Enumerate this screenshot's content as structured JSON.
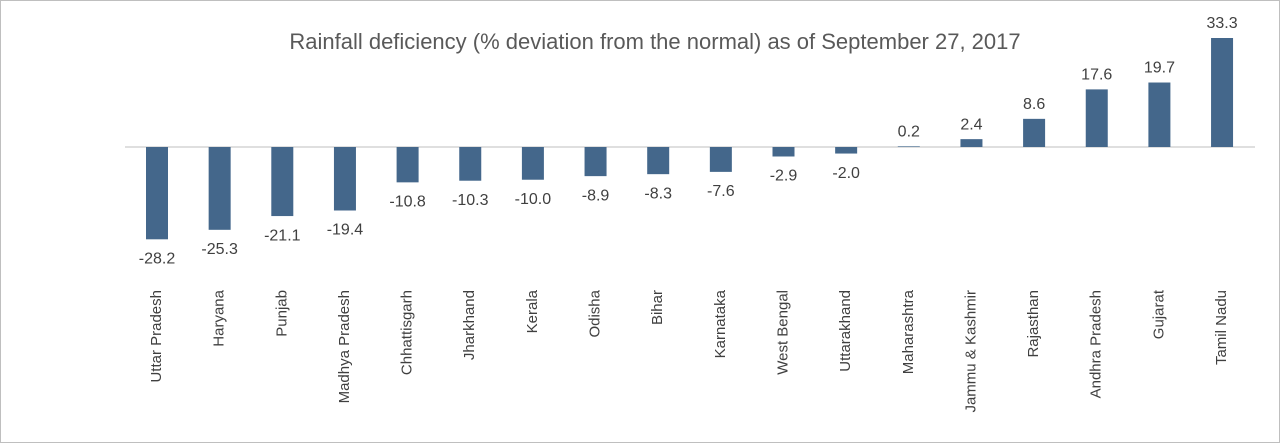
{
  "chart_data": {
    "type": "bar",
    "title": "Rainfall deficiency (% deviation from the normal) as of September 27, 2017",
    "categories": [
      "Uttar Pradesh",
      "Haryana",
      "Punjab",
      "Madhya Pradesh",
      "Chhattisgarh",
      "Jharkhand",
      "Kerala",
      "Odisha",
      "Bihar",
      "Karnataka",
      "West Bengal",
      "Uttarakhand",
      "Maharashtra",
      "Jammu & Kashmir",
      "Rajasthan",
      "Andhra Pradesh",
      "Gujarat",
      "Tamil Nadu"
    ],
    "values": [
      -28.2,
      -25.3,
      -21.1,
      -19.4,
      -10.8,
      -10.3,
      -10.0,
      -8.9,
      -8.3,
      -7.6,
      -2.9,
      -2.0,
      0.2,
      2.4,
      8.6,
      17.6,
      19.7,
      33.3
    ],
    "value_labels": [
      "-28.2",
      "-25.3",
      "-21.1",
      "-19.4",
      "-10.8",
      "-10.3",
      "-10.0",
      "-8.9",
      "-8.3",
      "-7.6",
      "-2.9",
      "-2.0",
      "0.2",
      "2.4",
      "8.6",
      "17.6",
      "19.7",
      "33.3"
    ],
    "color": "#44678b"
  }
}
